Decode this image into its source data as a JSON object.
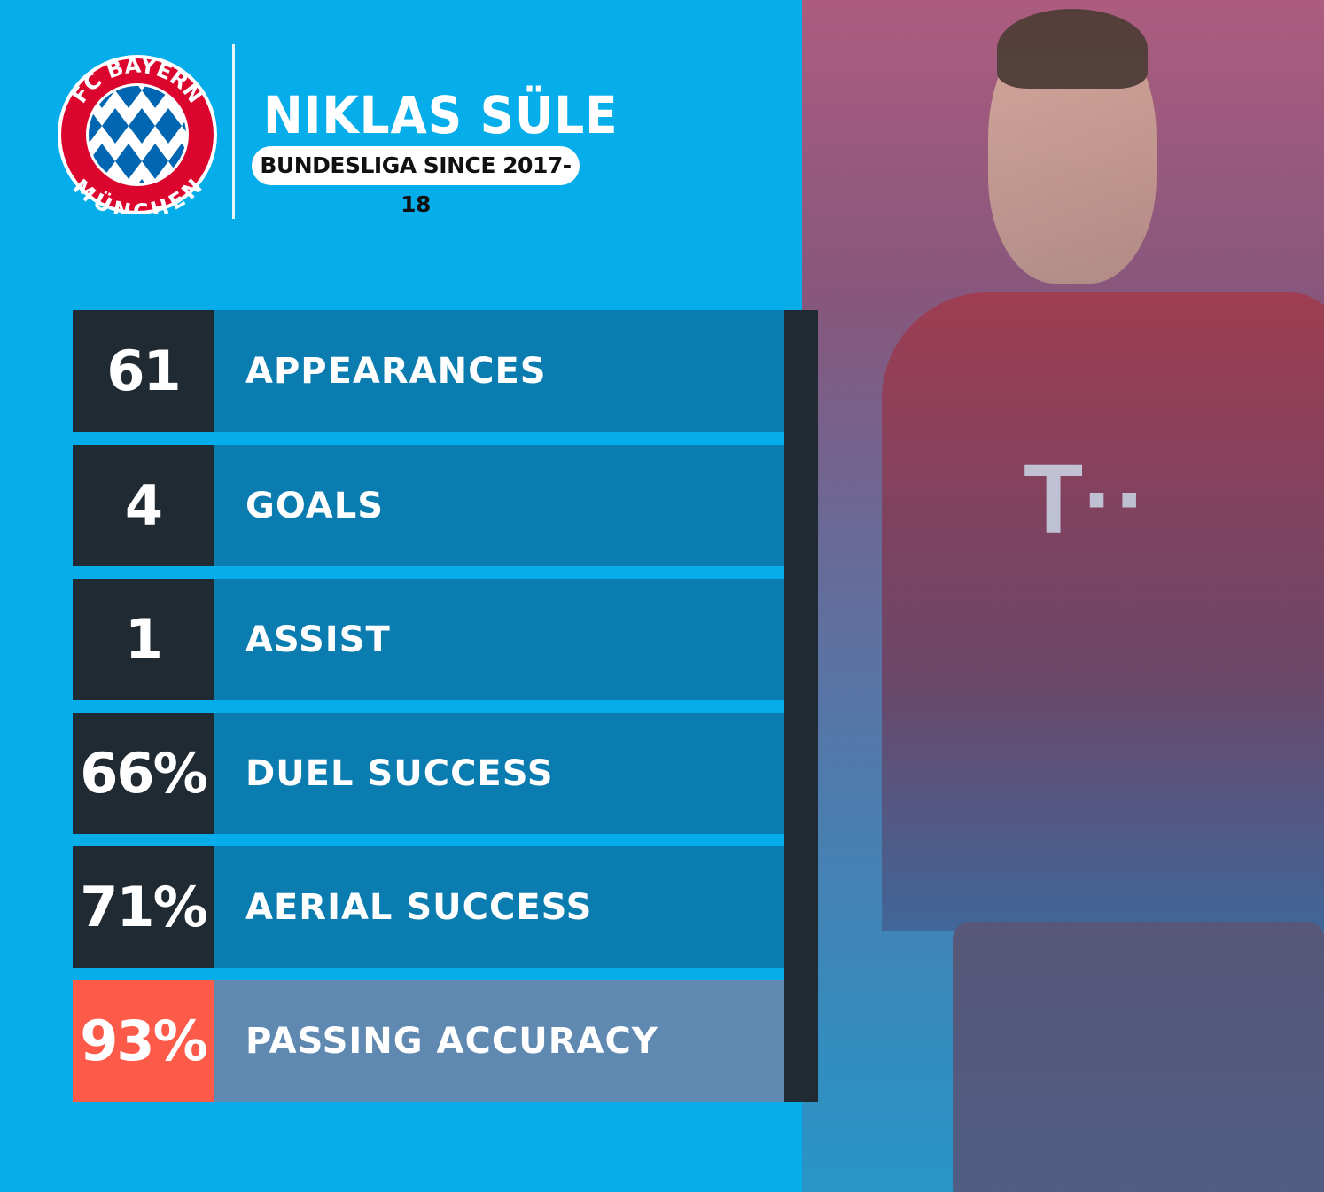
{
  "logo": {
    "text_top": "FC BAYERN",
    "text_bottom": "MÜNCHEN",
    "colors": {
      "ring": "#dc052d",
      "diamond": "#0066b2"
    }
  },
  "header": {
    "player_name": "NIKLAS SÜLE",
    "subtitle": "BUNDESLIGA SINCE 2017-18"
  },
  "stats": [
    {
      "value": "61",
      "label": "APPEARANCES"
    },
    {
      "value": "4",
      "label": "GOALS"
    },
    {
      "value": "1",
      "label": "ASSIST"
    },
    {
      "value": "66%",
      "label": "DUEL SUCCESS"
    },
    {
      "value": "71%",
      "label": "AERIAL SUCCESS"
    },
    {
      "value": "93%",
      "label": "PASSING ACCURACY",
      "highlight": true
    }
  ],
  "colors": {
    "background": "#05aeea",
    "dark": "#202a33",
    "row": "#0a7caf",
    "highlight": "#fd5a4a",
    "highlight_row": "#5f89b0"
  }
}
